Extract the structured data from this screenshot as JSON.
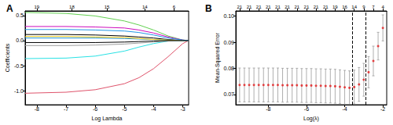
{
  "chart_data": [
    {
      "type": "line",
      "title": "A",
      "x_label": "Log Lambda",
      "y_label": "Coefficients",
      "x": [
        -8.4,
        -7,
        -6,
        -5,
        -4.5,
        -4,
        -3.5,
        -3,
        -2.8
      ],
      "series": [
        {
          "color": "#000000",
          "values": [
            0.12,
            0.12,
            0.11,
            0.09,
            0.07,
            0.05,
            0.02,
            0,
            0
          ]
        },
        {
          "color": "#DF536B",
          "values": [
            -1.05,
            -1.03,
            -0.98,
            -0.86,
            -0.74,
            -0.56,
            -0.32,
            -0.06,
            0
          ]
        },
        {
          "color": "#61D04F",
          "values": [
            0.56,
            0.54,
            0.49,
            0.39,
            0.31,
            0.21,
            0.09,
            0.01,
            0
          ]
        },
        {
          "color": "#2297E6",
          "values": [
            0.05,
            0.05,
            0.05,
            0.04,
            0.03,
            0.02,
            0.01,
            0,
            0
          ]
        },
        {
          "color": "#28E2E5",
          "values": [
            -0.36,
            -0.35,
            -0.31,
            -0.21,
            -0.13,
            -0.06,
            -0.01,
            0,
            0
          ]
        },
        {
          "color": "#CD0BBC",
          "values": [
            0.28,
            0.28,
            0.27,
            0.25,
            0.21,
            0.15,
            0.07,
            0.01,
            0
          ]
        },
        {
          "color": "#F5C710",
          "values": [
            0.08,
            0.08,
            0.07,
            0.06,
            0.04,
            0.02,
            0.01,
            0,
            0
          ]
        },
        {
          "color": "#9E9E9E",
          "values": [
            -0.1,
            -0.1,
            -0.09,
            -0.07,
            -0.05,
            -0.03,
            -0.01,
            0,
            0
          ]
        },
        {
          "color": "#2297E6",
          "values": [
            0.22,
            0.22,
            0.21,
            0.19,
            0.16,
            0.11,
            0.05,
            0.01,
            0
          ]
        },
        {
          "color": "#000000",
          "values": [
            -0.04,
            -0.04,
            -0.04,
            -0.03,
            -0.02,
            -0.01,
            0,
            0,
            0
          ]
        }
      ],
      "xlim": [
        -8.4,
        -2.8
      ],
      "ylim": [
        -1.28,
        0.59
      ],
      "xticks": [
        -8,
        -7,
        -6,
        -5,
        -4,
        -3
      ],
      "yticks": [
        {
          "value": -1,
          "label": "-1.0"
        },
        -0.5,
        {
          "value": 0,
          "label": "0.0"
        },
        0.5
      ],
      "top_ticks": [
        {
          "value": -8,
          "label": "19"
        },
        {
          "value": -6.8,
          "label": "18"
        },
        {
          "value": -5.6,
          "label": "15"
        },
        {
          "value": -4.3,
          "label": "14"
        },
        {
          "value": -3.3,
          "label": "6"
        }
      ],
      "grid": false
    },
    {
      "type": "scatter",
      "title": "B",
      "x_label": "Log(λ)",
      "y_label": "Mean-Squared Error",
      "x": [
        -9.5,
        -9.25,
        -9,
        -8.75,
        -8.5,
        -8.25,
        -8,
        -7.75,
        -7.5,
        -7.25,
        -7,
        -6.75,
        -6.5,
        -6.25,
        -6,
        -5.75,
        -5.5,
        -5.25,
        -5,
        -4.75,
        -4.5,
        -4.25,
        -4,
        -3.75,
        -3.5,
        -3.25,
        -3,
        -2.75,
        -2.5,
        -2.25,
        -2
      ],
      "values": [
        0.0736,
        0.0736,
        0.0736,
        0.0736,
        0.0736,
        0.0736,
        0.0736,
        0.0736,
        0.0736,
        0.0735,
        0.0735,
        0.0735,
        0.0735,
        0.0734,
        0.0734,
        0.0734,
        0.0733,
        0.0733,
        0.0732,
        0.0732,
        0.0731,
        0.0729,
        0.0727,
        0.0725,
        0.0728,
        0.0738,
        0.0756,
        0.0785,
        0.0828,
        0.0885,
        0.0955
      ],
      "error": [
        0.0065,
        0.0065,
        0.0065,
        0.0065,
        0.0065,
        0.0065,
        0.0065,
        0.0065,
        0.0065,
        0.0065,
        0.0065,
        0.0065,
        0.0065,
        0.0065,
        0.0065,
        0.0065,
        0.0065,
        0.0065,
        0.0065,
        0.0065,
        0.0065,
        0.0065,
        0.0065,
        0.0065,
        0.0065,
        0.0065,
        0.0063,
        0.006,
        0.0057,
        0.0053,
        0.005
      ],
      "color": "#e41a1c",
      "vlines": [
        -3.6,
        -2.9
      ],
      "xlim": [
        -9.7,
        -1.8
      ],
      "ylim": [
        0.066,
        0.102
      ],
      "xticks": [
        -8,
        -6,
        -4,
        -2
      ],
      "yticks": [
        0.07,
        0.08,
        0.09,
        {
          "value": 0.1,
          "label": "0.10"
        }
      ],
      "top_ticks": [
        {
          "value": -9.5,
          "label": "21"
        },
        {
          "value": -9,
          "label": "21"
        },
        {
          "value": -8.5,
          "label": "21"
        },
        {
          "value": -8,
          "label": "21"
        },
        {
          "value": -7.5,
          "label": "21"
        },
        {
          "value": -7,
          "label": "21"
        },
        {
          "value": -6.5,
          "label": "21"
        },
        {
          "value": -6,
          "label": "21"
        },
        {
          "value": -5.5,
          "label": "21"
        },
        {
          "value": -5,
          "label": "21"
        },
        {
          "value": -4.5,
          "label": "19"
        },
        {
          "value": -4,
          "label": "16"
        },
        {
          "value": -3.5,
          "label": "14"
        },
        {
          "value": -3,
          "label": "9"
        },
        {
          "value": -2.5,
          "label": "7"
        },
        {
          "value": -2,
          "label": "4"
        }
      ],
      "grid": false
    }
  ]
}
